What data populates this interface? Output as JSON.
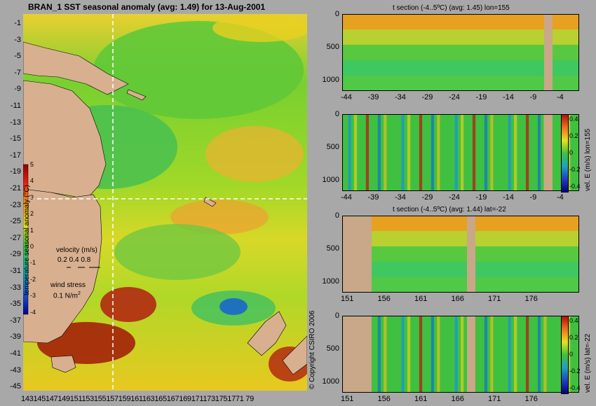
{
  "main_title": "BRAN_1  SST seasonal anomaly (avg: 1.49) for 13-Aug-2001",
  "map": {
    "lat_labels": [
      "-1",
      "-3",
      "-5",
      "-7",
      "-9",
      "-11",
      "-13",
      "-15",
      "-17",
      "-19",
      "-21",
      "-23",
      "-25",
      "-27",
      "-29",
      "-31",
      "-33",
      "-35",
      "-37",
      "-39",
      "-41",
      "-43",
      "-45"
    ],
    "lon_labels": "1431451471491511531551571591611631651671691711731751771 79",
    "colorbar_ticks": [
      "5",
      "4",
      "3",
      "2",
      "1",
      "0",
      "-1",
      "-2",
      "-3",
      "-4"
    ],
    "colorbar_label": "temperature seasonal anomaly (°C)",
    "velocity_label": "velocity (m/s)",
    "velocity_values": "0.2 0.4 0.8",
    "wind_label": "wind stress",
    "wind_value": "0.1 N/m",
    "wind_exp": "2",
    "copyright": "© Copyright CSIRO 2006",
    "colors": {
      "land": "#d8b08f",
      "ocean_base": "#5ccc3c"
    }
  },
  "panels": [
    {
      "title": "t section (-4..5ºC) (avg: 1.45) lon=155",
      "y_ticks": [
        "0",
        "500",
        "1000"
      ],
      "x_ticks": [
        "-44",
        "-39",
        "-34",
        "-29",
        "-24",
        "-19",
        "-14",
        "-9",
        "-4"
      ]
    },
    {
      "title": "",
      "y_ticks": [
        "0",
        "500",
        "1000"
      ],
      "x_ticks": [
        "-44",
        "-39",
        "-34",
        "-29",
        "-24",
        "-19",
        "-14",
        "-9",
        "-4"
      ],
      "cb_label": "vel. E (m/s) lon=155",
      "cb_ticks": [
        "0.4",
        "0.2",
        "0",
        "-0.2",
        "-0.4"
      ]
    },
    {
      "title": "t section (-4..5ºC) (avg: 1.44) lat=-22",
      "y_ticks": [
        "0",
        "500",
        "1000"
      ],
      "x_ticks": [
        "151",
        "156",
        "161",
        "166",
        "171",
        "176"
      ]
    },
    {
      "title": "",
      "y_ticks": [
        "0",
        "500",
        "1000"
      ],
      "x_ticks": [
        "151",
        "156",
        "161",
        "166",
        "171",
        "176"
      ],
      "cb_label": "vel. E (m/s) lat=-22",
      "cb_ticks": [
        "0.4",
        "0.2",
        "0",
        "-0.2",
        "-0.4"
      ]
    }
  ]
}
